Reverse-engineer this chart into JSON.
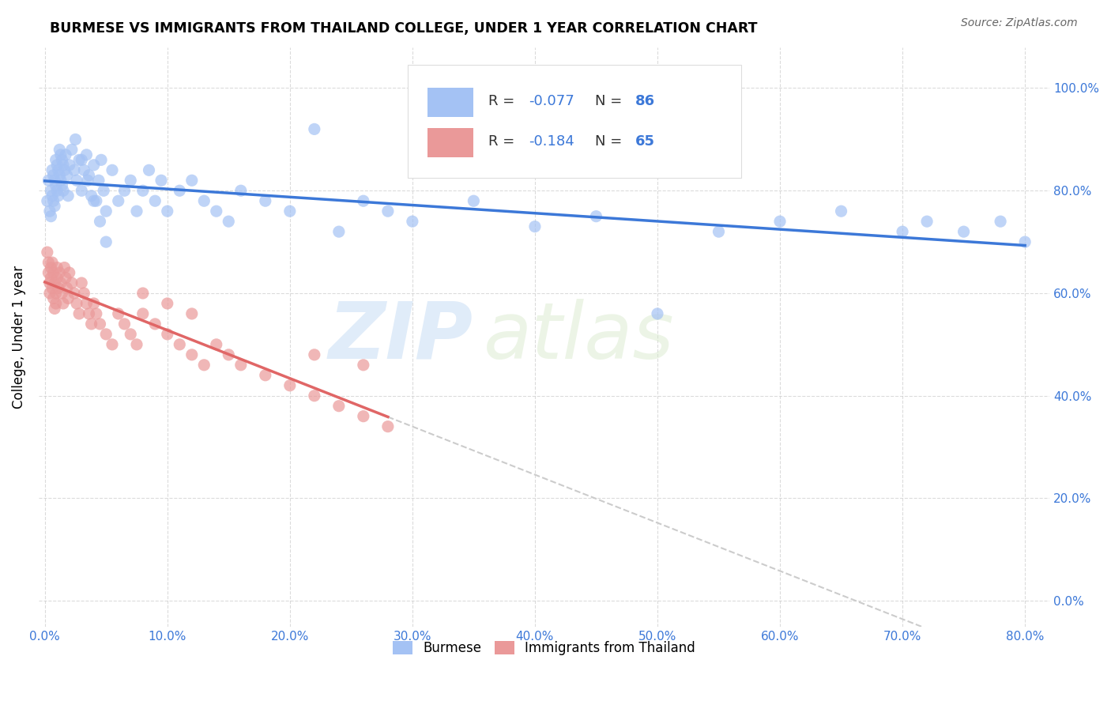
{
  "title": "BURMESE VS IMMIGRANTS FROM THAILAND COLLEGE, UNDER 1 YEAR CORRELATION CHART",
  "source": "Source: ZipAtlas.com",
  "xlim": [
    -0.005,
    0.82
  ],
  "ylim": [
    -0.05,
    1.08
  ],
  "ylabel": "College, Under 1 year",
  "blue_color": "#a4c2f4",
  "pink_color": "#ea9999",
  "blue_line_color": "#3c78d8",
  "pink_line_color": "#e06666",
  "dashed_line_color": "#cccccc",
  "legend_r_blue": "R = -0.077",
  "legend_n_blue": "N = 86",
  "legend_r_pink": "R =  -0.184",
  "legend_n_pink": "N = 65",
  "watermark_zip": "ZIP",
  "watermark_atlas": "atlas",
  "blue_scatter_x": [
    0.002,
    0.003,
    0.004,
    0.005,
    0.005,
    0.006,
    0.006,
    0.007,
    0.007,
    0.008,
    0.008,
    0.009,
    0.009,
    0.01,
    0.01,
    0.011,
    0.011,
    0.012,
    0.012,
    0.013,
    0.013,
    0.014,
    0.014,
    0.015,
    0.015,
    0.016,
    0.017,
    0.018,
    0.019,
    0.02,
    0.022,
    0.024,
    0.026,
    0.028,
    0.03,
    0.032,
    0.034,
    0.036,
    0.038,
    0.04,
    0.042,
    0.044,
    0.046,
    0.048,
    0.05,
    0.055,
    0.06,
    0.065,
    0.07,
    0.075,
    0.08,
    0.085,
    0.09,
    0.095,
    0.1,
    0.11,
    0.12,
    0.13,
    0.14,
    0.15,
    0.16,
    0.18,
    0.2,
    0.22,
    0.24,
    0.26,
    0.28,
    0.3,
    0.35,
    0.4,
    0.45,
    0.5,
    0.55,
    0.6,
    0.65,
    0.7,
    0.72,
    0.75,
    0.78,
    0.8,
    0.025,
    0.03,
    0.035,
    0.04,
    0.045,
    0.05
  ],
  "blue_scatter_y": [
    0.78,
    0.82,
    0.76,
    0.8,
    0.75,
    0.84,
    0.79,
    0.83,
    0.78,
    0.82,
    0.77,
    0.86,
    0.81,
    0.85,
    0.8,
    0.84,
    0.79,
    0.88,
    0.83,
    0.87,
    0.82,
    0.86,
    0.81,
    0.85,
    0.8,
    0.84,
    0.87,
    0.83,
    0.79,
    0.85,
    0.88,
    0.84,
    0.82,
    0.86,
    0.8,
    0.84,
    0.87,
    0.83,
    0.79,
    0.85,
    0.78,
    0.82,
    0.86,
    0.8,
    0.76,
    0.84,
    0.78,
    0.8,
    0.82,
    0.76,
    0.8,
    0.84,
    0.78,
    0.82,
    0.76,
    0.8,
    0.82,
    0.78,
    0.76,
    0.74,
    0.8,
    0.78,
    0.76,
    0.92,
    0.72,
    0.78,
    0.76,
    0.74,
    0.78,
    0.73,
    0.75,
    0.56,
    0.72,
    0.74,
    0.76,
    0.72,
    0.74,
    0.72,
    0.74,
    0.7,
    0.9,
    0.86,
    0.82,
    0.78,
    0.74,
    0.7
  ],
  "pink_scatter_x": [
    0.002,
    0.003,
    0.003,
    0.004,
    0.004,
    0.005,
    0.005,
    0.006,
    0.006,
    0.007,
    0.007,
    0.008,
    0.008,
    0.009,
    0.009,
    0.01,
    0.01,
    0.011,
    0.012,
    0.013,
    0.014,
    0.015,
    0.016,
    0.017,
    0.018,
    0.019,
    0.02,
    0.022,
    0.024,
    0.026,
    0.028,
    0.03,
    0.032,
    0.034,
    0.036,
    0.038,
    0.04,
    0.042,
    0.045,
    0.05,
    0.055,
    0.06,
    0.065,
    0.07,
    0.075,
    0.08,
    0.09,
    0.1,
    0.11,
    0.12,
    0.13,
    0.14,
    0.15,
    0.16,
    0.18,
    0.2,
    0.22,
    0.24,
    0.26,
    0.28,
    0.08,
    0.1,
    0.12,
    0.22,
    0.26
  ],
  "pink_scatter_y": [
    0.68,
    0.66,
    0.64,
    0.62,
    0.6,
    0.65,
    0.63,
    0.61,
    0.66,
    0.64,
    0.59,
    0.62,
    0.57,
    0.6,
    0.58,
    0.65,
    0.63,
    0.61,
    0.64,
    0.62,
    0.6,
    0.58,
    0.65,
    0.63,
    0.61,
    0.59,
    0.64,
    0.62,
    0.6,
    0.58,
    0.56,
    0.62,
    0.6,
    0.58,
    0.56,
    0.54,
    0.58,
    0.56,
    0.54,
    0.52,
    0.5,
    0.56,
    0.54,
    0.52,
    0.5,
    0.56,
    0.54,
    0.52,
    0.5,
    0.48,
    0.46,
    0.5,
    0.48,
    0.46,
    0.44,
    0.42,
    0.4,
    0.38,
    0.36,
    0.34,
    0.6,
    0.58,
    0.56,
    0.48,
    0.46
  ]
}
